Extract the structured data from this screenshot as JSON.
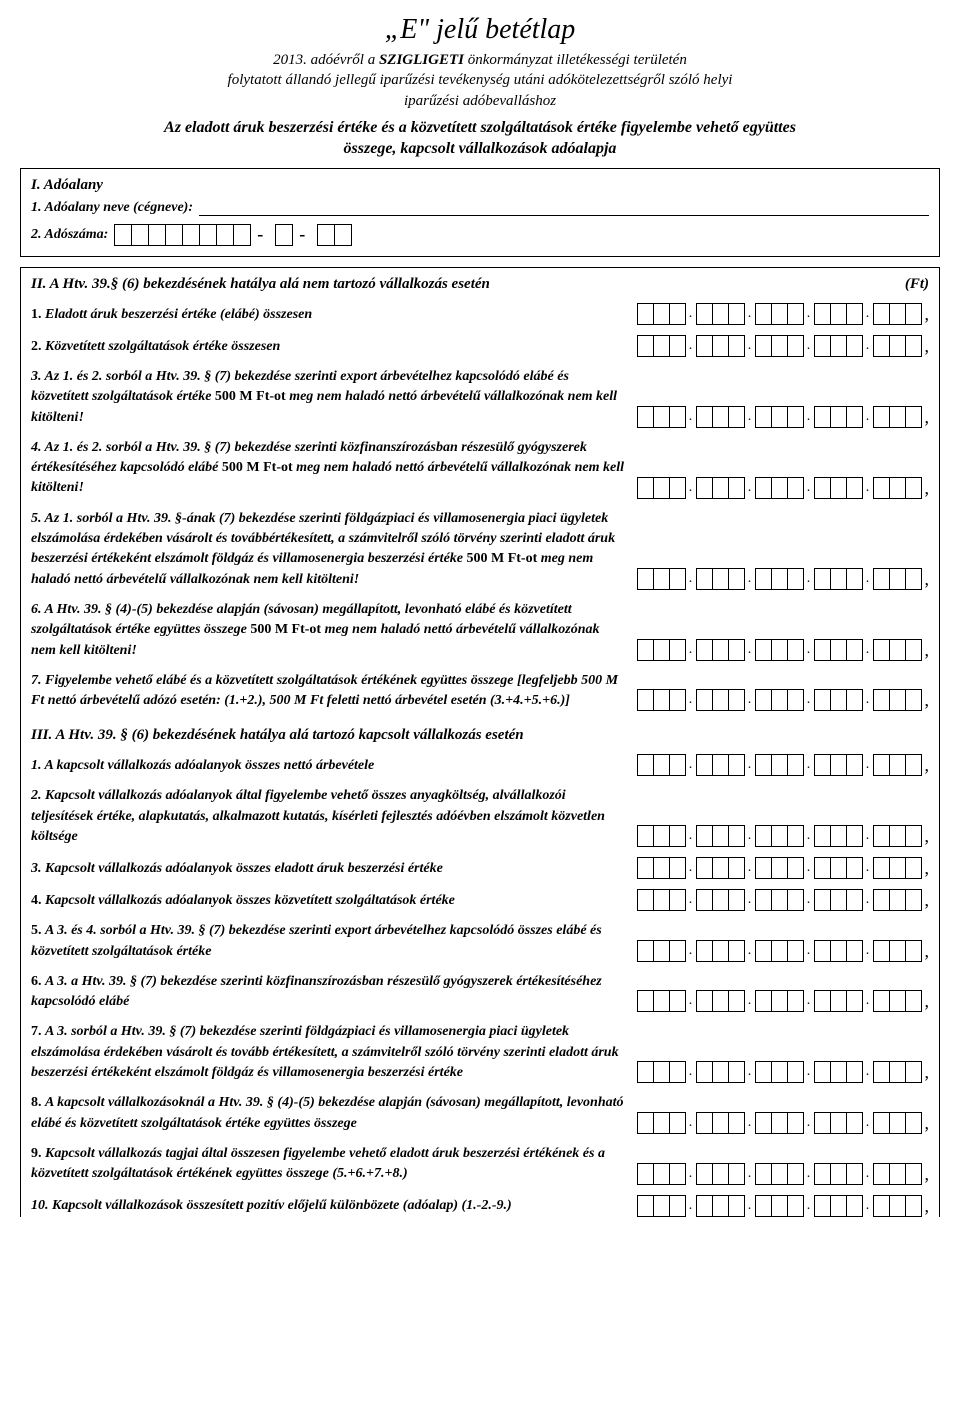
{
  "header": {
    "title": "„E\" jelű betétlap",
    "line1_pre": "2013. adóévről  a ",
    "line1_bold": "SZIGLIGETI",
    "line1_post": "  önkormányzat illetékességi területén",
    "line2": "folytatott állandó jellegű iparűzési tevékenység utáni adókötelezettségről szóló helyi",
    "line3": "iparűzési adóbevalláshoz",
    "bold1": "Az eladott áruk beszerzési értéke és a közvetített szolgáltatások értéke figyelembe vehető együttes",
    "bold2": "összege, kapcsolt vállalkozások adóalapja"
  },
  "section1": {
    "heading": "I. Adóalany",
    "name_label": "1.  Adóalany neve (cégneve):",
    "taxid_label": "2.  Adószáma:"
  },
  "section2": {
    "heading": "II. A Htv. 39.§ (6) bekezdésének hatálya alá nem tartozó vállalkozás esetén",
    "unit": "(Ft)",
    "rows": [
      {
        "text": "<span class='bold'>1.</span> <span class='bold ital'>Eladott áruk beszerzési értéke (elábé) összesen</span>"
      },
      {
        "text": "<span class='bold'>2.</span> <span class='bold ital'>Közvetített szolgáltatások értéke összesen</span>"
      },
      {
        "text": "<span class='bold ital'>3. Az 1. és 2. sorból a Htv. 39. § (7) bekezdése szerinti export árbevételhez kapcsolódó elábé és közvetített szolgáltatások értéke</span> <span class='bold'>500 M Ft-ot</span> <span class='bold ital'>meg nem haladó nettó árbevételű vállalkozónak nem kell kitölteni!</span>"
      },
      {
        "text": "<span class='bold ital'> 4. Az 1. és 2. sorból a Htv. 39. § (7) bekezdése szerinti közfinanszírozásban részesülő gyógyszerek értékesítéséhez kapcsolódó elábé</span> <span class='bold'>500 M Ft-ot</span> <span class='bold ital'>meg nem haladó nettó árbevételű vállalkozónak nem kell kitölteni!</span>"
      },
      {
        "text": "<span class='bold ital'>5. Az 1. sorból a Htv. 39. §-ának (7) bekezdése szerinti földgázpiaci és villamosenergia piaci ügyletek elszámolása érdekében vásárolt és továbbértékesített, a számvitelről szóló törvény szerinti eladott áruk beszerzési értékeként elszámolt földgáz és villamosenergia beszerzési értéke</span> <span class='bold'>500 M Ft-ot</span> <span class='bold ital'>meg nem haladó nettó árbevételű vállalkozónak nem kell kitölteni!</span>"
      },
      {
        "text": "<span class='bold ital'>6. A Htv. 39. § (4)-(5) bekezdése alapján (sávosan) megállapított, levonható elábé és közvetített szolgáltatások értéke együttes összege</span> <span class='bold'>500 M Ft-ot</span> <span class='bold ital'>meg nem haladó nettó árbevételű vállalkozónak nem kell kitölteni!</span>"
      },
      {
        "text": "<span class='bold ital'>7. Figyelembe vehető elábé és a közvetített szolgáltatások értékének együttes összege [legfeljebb 500 M Ft nettó árbevételű adózó esetén: (1.+2.), 500 M Ft feletti nettó árbevétel esetén (3.+4.+5.+6.)]</span>"
      }
    ]
  },
  "section3": {
    "heading": "III. A Htv. 39. § (6) bekezdésének hatálya alá tartozó kapcsolt vállalkozás esetén",
    "rows": [
      {
        "text": "<span class='bold ital'>1. A kapcsolt vállalkozás adóalanyok összes nettó árbevétele</span>"
      },
      {
        "text": "<span class='bold ital'>2. Kapcsolt vállalkozás adóalanyok által figyelembe vehető összes anyagköltség, alvállalkozói teljesítések értéke, alapkutatás, alkalmazott kutatás, kísérleti fejlesztés adóévben elszámolt közvetlen költsége</span>"
      },
      {
        "text": "<span class='bold ital'>3. Kapcsolt vállalkozás adóalanyok összes eladott áruk beszerzési értéke</span>"
      },
      {
        "text": "<span class='bold'>4.</span> <span class='bold ital'>Kapcsolt vállalkozás adóalanyok összes közvetített szolgáltatások értéke</span>"
      },
      {
        "text": "<span class='bold'>5.</span> <span class='bold ital'>A 3. és 4. sorból a Htv. 39. § (7) bekezdése szerinti export árbevételhez kapcsolódó összes elábé és közvetített szolgáltatások értéke</span>"
      },
      {
        "text": "<span class='bold'>6.</span> <span class='bold ital'>A 3. a Htv. 39. § (7) bekezdése szerinti közfinanszírozásban részesülő gyógyszerek értékesítéséhez kapcsolódó elábé</span>"
      },
      {
        "text": "<span class='bold'>7.</span> <span class='bold ital'>A 3. sorból a Htv. 39. § (7) bekezdése szerinti földgázpiaci és villamosenergia piaci ügyletek elszámolása érdekében vásárolt és tovább értékesített, a számvitelről szóló törvény szerinti eladott áruk beszerzési értékeként elszámolt földgáz és villamosenergia beszerzési értéke</span>"
      },
      {
        "text": "<span class='bold'>8.</span> <span class='bold ital'>A kapcsolt vállalkozásoknál a Htv. 39. § (4)-(5) bekezdése alapján (sávosan) megállapított, levonható elábé és közvetített szolgáltatások értéke együttes összege</span>"
      },
      {
        "text": "<span class='bold'>9.</span> <span class='bold ital'>Kapcsolt vállalkozás tagjai által összesen figyelembe vehető eladott áruk beszerzési értékének és a közvetített szolgáltatások értékének együttes összege (5.+6.+7.+8.)</span>"
      },
      {
        "text": "<span class='bold ital'>10. Kapcsolt vállalkozások összesített pozitív előjelű különbözete (adóalap) (1.-2.-9.)</span>"
      }
    ]
  }
}
